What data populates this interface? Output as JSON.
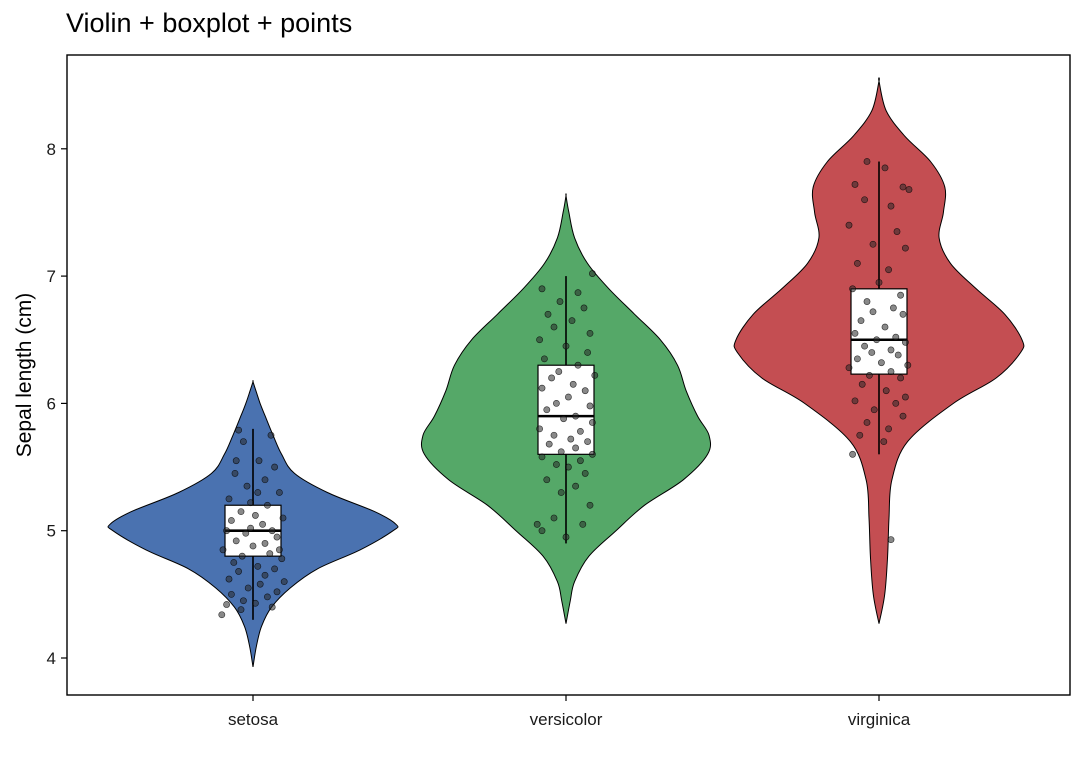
{
  "chart_data": {
    "type": "violin",
    "title": "Violin + boxplot + points",
    "xlabel": "",
    "ylabel": "Sepal length (cm)",
    "ylim": [
      3.7,
      8.7
    ],
    "y_ticks": [
      4,
      5,
      6,
      7,
      8
    ],
    "grid": false,
    "legend": "none",
    "categories": [
      "setosa",
      "versicolor",
      "virginica"
    ],
    "colors": [
      "#4a72b0",
      "#55a868",
      "#c44e52"
    ],
    "groups": [
      {
        "category": "setosa",
        "color": "#4a72b0",
        "box": {
          "whisker_low": 4.3,
          "q1": 4.8,
          "median": 5.0,
          "q3": 5.2,
          "whisker_high": 5.8
        },
        "violin_range": [
          3.93,
          6.17
        ],
        "density": [
          [
            3.93,
            0
          ],
          [
            4.1,
            0.025
          ],
          [
            4.25,
            0.06
          ],
          [
            4.4,
            0.13
          ],
          [
            4.55,
            0.26
          ],
          [
            4.7,
            0.45
          ],
          [
            4.85,
            0.75
          ],
          [
            5.0,
            0.98
          ],
          [
            5.05,
            1.0
          ],
          [
            5.15,
            0.85
          ],
          [
            5.3,
            0.52
          ],
          [
            5.45,
            0.29
          ],
          [
            5.6,
            0.2
          ],
          [
            5.75,
            0.14
          ],
          [
            5.9,
            0.085
          ],
          [
            6.0,
            0.05
          ],
          [
            6.1,
            0.02
          ],
          [
            6.17,
            0
          ]
        ],
        "points": [
          [
            -0.12,
            5.79
          ],
          [
            0.15,
            5.75
          ],
          [
            -0.08,
            5.7
          ],
          [
            0.05,
            5.55
          ],
          [
            0.18,
            5.5
          ],
          [
            -0.15,
            5.45
          ],
          [
            0.1,
            5.4
          ],
          [
            -0.05,
            5.35
          ],
          [
            0.22,
            5.3
          ],
          [
            -0.2,
            5.25
          ],
          [
            0.12,
            5.2
          ],
          [
            -0.1,
            5.15
          ],
          [
            0.02,
            5.12
          ],
          [
            0.25,
            5.1
          ],
          [
            -0.18,
            5.08
          ],
          [
            0.08,
            5.05
          ],
          [
            -0.02,
            5.02
          ],
          [
            0.16,
            5.0
          ],
          [
            -0.22,
            5.0
          ],
          [
            -0.06,
            4.98
          ],
          [
            0.2,
            4.95
          ],
          [
            -0.14,
            4.92
          ],
          [
            0.1,
            4.9
          ],
          [
            0.0,
            4.88
          ],
          [
            -0.25,
            4.85
          ],
          [
            0.14,
            4.82
          ],
          [
            -0.09,
            4.8
          ],
          [
            0.24,
            4.78
          ],
          [
            -0.16,
            4.75
          ],
          [
            0.04,
            4.72
          ],
          [
            0.18,
            4.7
          ],
          [
            -0.12,
            4.68
          ],
          [
            0.1,
            4.65
          ],
          [
            -0.2,
            4.62
          ],
          [
            0.26,
            4.6
          ],
          [
            0.06,
            4.58
          ],
          [
            -0.04,
            4.55
          ],
          [
            0.2,
            4.52
          ],
          [
            -0.18,
            4.5
          ],
          [
            0.12,
            4.48
          ],
          [
            -0.08,
            4.45
          ],
          [
            0.02,
            4.43
          ],
          [
            -0.22,
            4.42
          ],
          [
            0.16,
            4.4
          ],
          [
            -0.1,
            4.38
          ],
          [
            -0.26,
            4.34
          ],
          [
            0.22,
            4.85
          ],
          [
            -0.02,
            5.22
          ],
          [
            0.04,
            5.3
          ],
          [
            -0.14,
            5.55
          ]
        ]
      },
      {
        "category": "versicolor",
        "color": "#55a868",
        "box": {
          "whisker_low": 4.9,
          "q1": 5.6,
          "median": 5.9,
          "q3": 6.3,
          "whisker_high": 7.0
        },
        "violin_range": [
          4.27,
          7.63
        ],
        "density": [
          [
            4.27,
            0
          ],
          [
            4.45,
            0.03
          ],
          [
            4.6,
            0.06
          ],
          [
            4.8,
            0.16
          ],
          [
            5.0,
            0.35
          ],
          [
            5.2,
            0.55
          ],
          [
            5.4,
            0.82
          ],
          [
            5.6,
            0.99
          ],
          [
            5.75,
            1.0
          ],
          [
            5.9,
            0.92
          ],
          [
            6.1,
            0.84
          ],
          [
            6.3,
            0.78
          ],
          [
            6.5,
            0.66
          ],
          [
            6.7,
            0.48
          ],
          [
            6.9,
            0.3
          ],
          [
            7.1,
            0.15
          ],
          [
            7.3,
            0.06
          ],
          [
            7.5,
            0.02
          ],
          [
            7.63,
            0
          ]
        ],
        "points": [
          [
            -0.2,
            6.9
          ],
          [
            0.1,
            6.87
          ],
          [
            -0.05,
            6.8
          ],
          [
            0.22,
            7.02
          ],
          [
            0.15,
            6.75
          ],
          [
            -0.15,
            6.7
          ],
          [
            0.05,
            6.65
          ],
          [
            -0.1,
            6.6
          ],
          [
            0.2,
            6.55
          ],
          [
            -0.22,
            6.5
          ],
          [
            0.0,
            6.45
          ],
          [
            0.18,
            6.4
          ],
          [
            -0.18,
            6.35
          ],
          [
            0.1,
            6.3
          ],
          [
            -0.06,
            6.25
          ],
          [
            0.24,
            6.22
          ],
          [
            -0.12,
            6.2
          ],
          [
            0.06,
            6.15
          ],
          [
            -0.2,
            6.12
          ],
          [
            0.16,
            6.1
          ],
          [
            0.02,
            6.05
          ],
          [
            -0.08,
            6.0
          ],
          [
            0.2,
            5.98
          ],
          [
            -0.16,
            5.95
          ],
          [
            0.08,
            5.9
          ],
          [
            -0.02,
            5.88
          ],
          [
            0.22,
            5.85
          ],
          [
            -0.22,
            5.8
          ],
          [
            0.12,
            5.78
          ],
          [
            -0.1,
            5.75
          ],
          [
            0.04,
            5.72
          ],
          [
            0.18,
            5.7
          ],
          [
            -0.14,
            5.68
          ],
          [
            0.08,
            5.65
          ],
          [
            -0.04,
            5.62
          ],
          [
            0.22,
            5.6
          ],
          [
            -0.2,
            5.58
          ],
          [
            0.12,
            5.55
          ],
          [
            -0.08,
            5.52
          ],
          [
            0.02,
            5.5
          ],
          [
            0.16,
            5.45
          ],
          [
            -0.16,
            5.4
          ],
          [
            0.08,
            5.35
          ],
          [
            -0.04,
            5.3
          ],
          [
            0.2,
            5.2
          ],
          [
            -0.1,
            5.1
          ],
          [
            0.14,
            5.05
          ],
          [
            -0.2,
            5.0
          ],
          [
            0.0,
            4.95
          ],
          [
            -0.24,
            5.05
          ]
        ]
      },
      {
        "category": "virginica",
        "color": "#c44e52",
        "box": {
          "whisker_low": 5.6,
          "q1": 6.23,
          "median": 6.5,
          "q3": 6.9,
          "whisker_high": 7.9
        },
        "violin_range": [
          4.27,
          8.53
        ],
        "density": [
          [
            4.27,
            0
          ],
          [
            4.5,
            0.04
          ],
          [
            4.8,
            0.06
          ],
          [
            5.1,
            0.07
          ],
          [
            5.4,
            0.09
          ],
          [
            5.7,
            0.2
          ],
          [
            6.0,
            0.52
          ],
          [
            6.2,
            0.82
          ],
          [
            6.4,
            0.99
          ],
          [
            6.5,
            1.0
          ],
          [
            6.7,
            0.88
          ],
          [
            6.9,
            0.68
          ],
          [
            7.1,
            0.5
          ],
          [
            7.3,
            0.42
          ],
          [
            7.5,
            0.45
          ],
          [
            7.7,
            0.46
          ],
          [
            7.9,
            0.36
          ],
          [
            8.1,
            0.18
          ],
          [
            8.3,
            0.05
          ],
          [
            8.53,
            0
          ]
        ],
        "points": [
          [
            -0.1,
            7.9
          ],
          [
            0.05,
            7.85
          ],
          [
            -0.2,
            7.72
          ],
          [
            0.2,
            7.7
          ],
          [
            0.25,
            7.68
          ],
          [
            -0.12,
            7.6
          ],
          [
            0.1,
            7.55
          ],
          [
            -0.25,
            7.4
          ],
          [
            0.15,
            7.35
          ],
          [
            -0.05,
            7.25
          ],
          [
            0.22,
            7.22
          ],
          [
            -0.18,
            7.1
          ],
          [
            0.08,
            7.05
          ],
          [
            0.0,
            6.95
          ],
          [
            -0.22,
            6.9
          ],
          [
            0.18,
            6.85
          ],
          [
            -0.1,
            6.8
          ],
          [
            0.12,
            6.75
          ],
          [
            -0.05,
            6.72
          ],
          [
            0.2,
            6.7
          ],
          [
            -0.15,
            6.65
          ],
          [
            0.05,
            6.6
          ],
          [
            -0.2,
            6.55
          ],
          [
            0.14,
            6.52
          ],
          [
            -0.02,
            6.5
          ],
          [
            0.22,
            6.48
          ],
          [
            -0.12,
            6.45
          ],
          [
            0.1,
            6.42
          ],
          [
            -0.06,
            6.4
          ],
          [
            0.16,
            6.38
          ],
          [
            -0.18,
            6.35
          ],
          [
            0.02,
            6.32
          ],
          [
            0.24,
            6.3
          ],
          [
            -0.25,
            6.28
          ],
          [
            0.1,
            6.25
          ],
          [
            -0.08,
            6.22
          ],
          [
            0.18,
            6.2
          ],
          [
            -0.14,
            6.15
          ],
          [
            0.06,
            6.1
          ],
          [
            0.22,
            6.05
          ],
          [
            -0.2,
            6.02
          ],
          [
            0.14,
            6.0
          ],
          [
            -0.04,
            5.95
          ],
          [
            0.2,
            5.9
          ],
          [
            -0.1,
            5.85
          ],
          [
            0.08,
            5.8
          ],
          [
            -0.16,
            5.75
          ],
          [
            0.04,
            5.7
          ],
          [
            -0.22,
            5.6
          ],
          [
            0.1,
            4.93
          ]
        ]
      }
    ]
  }
}
